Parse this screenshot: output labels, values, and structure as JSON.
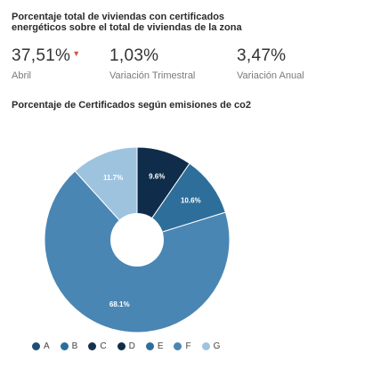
{
  "header": {
    "title": "Porcentaje total de viviendas con certificados energéticos sobre el total de viviendas de la zona"
  },
  "kpis": [
    {
      "value": "37,51%",
      "label": "Abril",
      "trend": "down"
    },
    {
      "value": "1,03%",
      "label": "Variación Trimestral"
    },
    {
      "value": "3,47%",
      "label": "Variación Anual"
    }
  ],
  "chart_section": {
    "title": "Porcentaje de Certificados según emisiones de co2"
  },
  "chart_data": {
    "type": "pie",
    "title": "Porcentaje de Certificados según emisiones de co2",
    "series": [
      {
        "name": "A",
        "value": 0.0,
        "color": "#1f4e79"
      },
      {
        "name": "B",
        "value": 0.0,
        "color": "#2a6f9b"
      },
      {
        "name": "C",
        "value": 0.0,
        "color": "#16324f"
      },
      {
        "name": "D",
        "value": 9.6,
        "color": "#0f2d4a"
      },
      {
        "name": "E",
        "value": 10.6,
        "color": "#2e6e9a"
      },
      {
        "name": "F",
        "value": 68.1,
        "color": "#4a86b3"
      },
      {
        "name": "G",
        "value": 11.7,
        "color": "#9ec3df"
      }
    ],
    "data_labels": [
      "9.6%",
      "10.6%",
      "68.1%",
      "11.7%"
    ],
    "legend_position": "bottom"
  }
}
